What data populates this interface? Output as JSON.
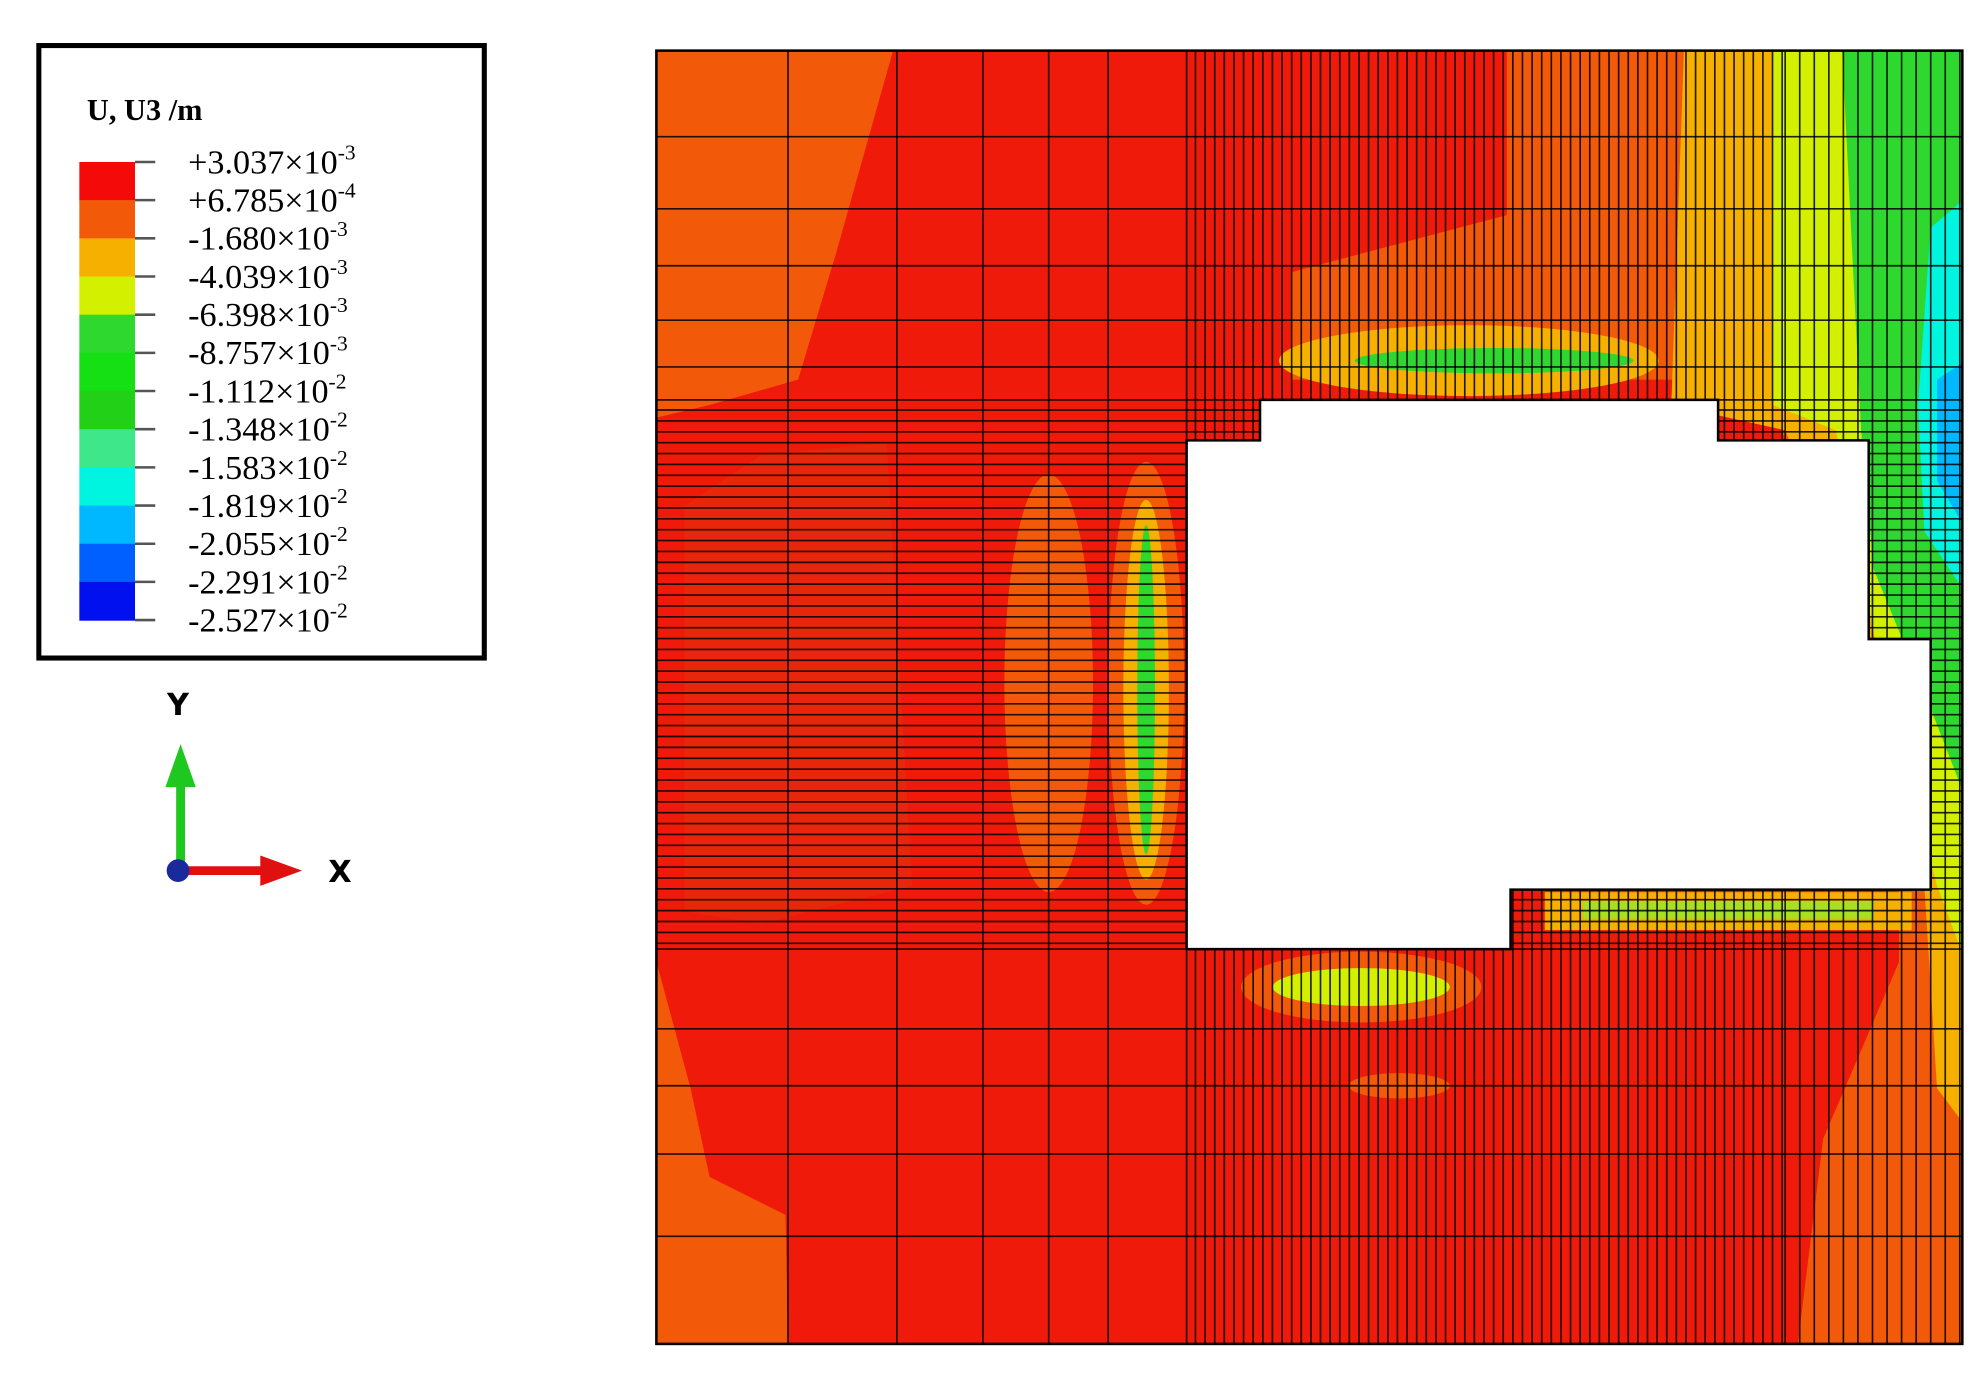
{
  "legend": {
    "title": "U, U3 /m",
    "colors": [
      "#f50a0a",
      "#f25a0a",
      "#f5b000",
      "#d2f000",
      "#2fd82f",
      "#14e014",
      "#22d018",
      "#3ee88a",
      "#00f5e0",
      "#00b8ff",
      "#0060ff",
      "#0010ee"
    ],
    "entries": [
      {
        "mantissa": "+3.037×10",
        "exponent": "-3"
      },
      {
        "mantissa": "+6.785×10",
        "exponent": "-4"
      },
      {
        "mantissa": "-1.680×10",
        "exponent": "-3"
      },
      {
        "mantissa": "-4.039×10",
        "exponent": "-3"
      },
      {
        "mantissa": "-6.398×10",
        "exponent": "-3"
      },
      {
        "mantissa": "-8.757×10",
        "exponent": "-3"
      },
      {
        "mantissa": "-1.112×10",
        "exponent": "-2"
      },
      {
        "mantissa": "-1.348×10",
        "exponent": "-2"
      },
      {
        "mantissa": "-1.583×10",
        "exponent": "-2"
      },
      {
        "mantissa": "-1.819×10",
        "exponent": "-2"
      },
      {
        "mantissa": "-2.055×10",
        "exponent": "-2"
      },
      {
        "mantissa": "-2.291×10",
        "exponent": "-2"
      },
      {
        "mantissa": "-2.527×10",
        "exponent": "-2"
      }
    ]
  },
  "triad": {
    "y_label": "Y",
    "x_label": "X"
  }
}
